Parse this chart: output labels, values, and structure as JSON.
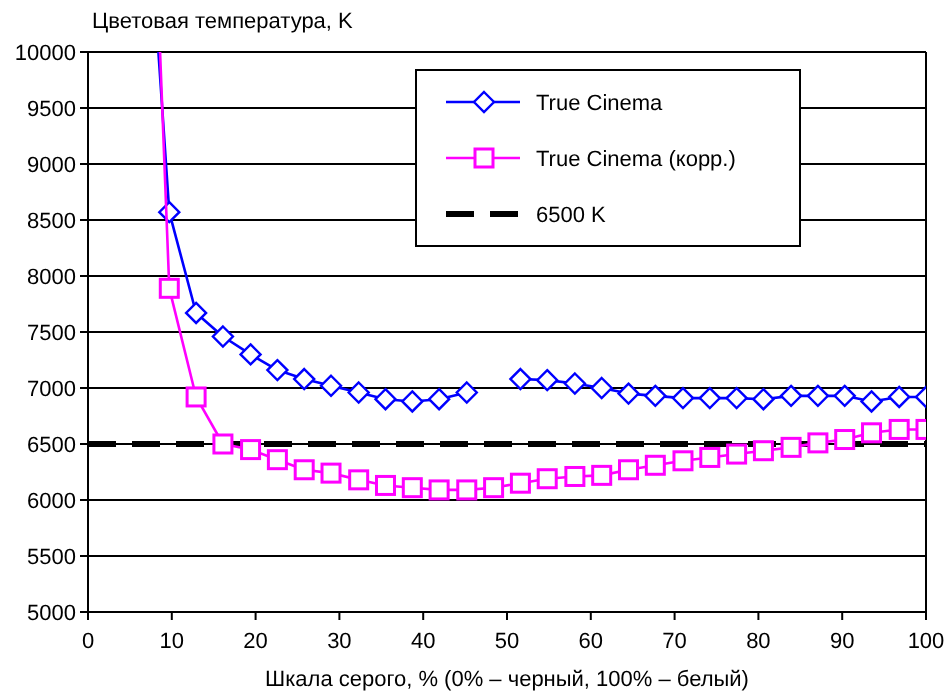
{
  "chart_data": {
    "type": "line",
    "ylabel": "Цветовая температура, K",
    "xlabel": "Шкала серого, % (0% – черный, 100% – белый)",
    "xlim": [
      0,
      100
    ],
    "xticks": [
      0,
      10,
      20,
      30,
      40,
      50,
      60,
      70,
      80,
      90,
      100
    ],
    "ylim": [
      5000,
      10000
    ],
    "yticks": [
      5000,
      5500,
      6000,
      6500,
      7000,
      7500,
      8000,
      8500,
      9000,
      9500,
      10000
    ],
    "grid": "y",
    "legend": "top right",
    "line_style": "solid",
    "series": [
      {
        "name": "True Cinema",
        "color": "#0000ff",
        "marker": "diamond",
        "x": [
          8.4,
          9.7,
          12.9,
          16.1,
          19.4,
          22.6,
          25.8,
          29.0,
          32.3,
          35.5,
          38.7,
          41.9,
          45.2,
          48.4,
          51.6,
          54.8,
          58.1,
          61.3,
          64.5,
          67.7,
          71.0,
          74.2,
          77.4,
          80.6,
          83.9,
          87.1,
          90.3,
          93.5,
          96.8,
          100
        ],
        "values": [
          10000,
          8570,
          7670,
          7460,
          7300,
          7160,
          7080,
          7020,
          6960,
          6900,
          6880,
          6900,
          6960,
          null,
          7080,
          7070,
          7040,
          7000,
          6950,
          6930,
          6910,
          6910,
          6910,
          6900,
          6930,
          6930,
          6930,
          6880,
          6920,
          6920
        ]
      },
      {
        "name": "True Cinema (корр.)",
        "color": "#ff00ff",
        "marker": "square",
        "x": [
          8.6,
          9.7,
          12.9,
          16.1,
          19.4,
          22.6,
          25.8,
          29.0,
          32.3,
          35.5,
          38.7,
          41.9,
          45.2,
          48.4,
          51.6,
          54.8,
          58.1,
          61.3,
          64.5,
          67.7,
          71.0,
          74.2,
          77.4,
          80.6,
          83.9,
          87.1,
          90.3,
          93.5,
          96.8,
          100
        ],
        "values": [
          10000,
          7890,
          6920,
          6500,
          6450,
          6360,
          6270,
          6240,
          6180,
          6130,
          6110,
          6090,
          6090,
          6110,
          6150,
          6190,
          6210,
          6220,
          6270,
          6310,
          6350,
          6380,
          6410,
          6440,
          6470,
          6510,
          6540,
          6600,
          6630,
          6630
        ]
      }
    ],
    "ref_lines": [
      {
        "axis": "y",
        "value": 6500,
        "label": "6500 K",
        "color": "#000000",
        "line_style": "dashed"
      }
    ]
  }
}
